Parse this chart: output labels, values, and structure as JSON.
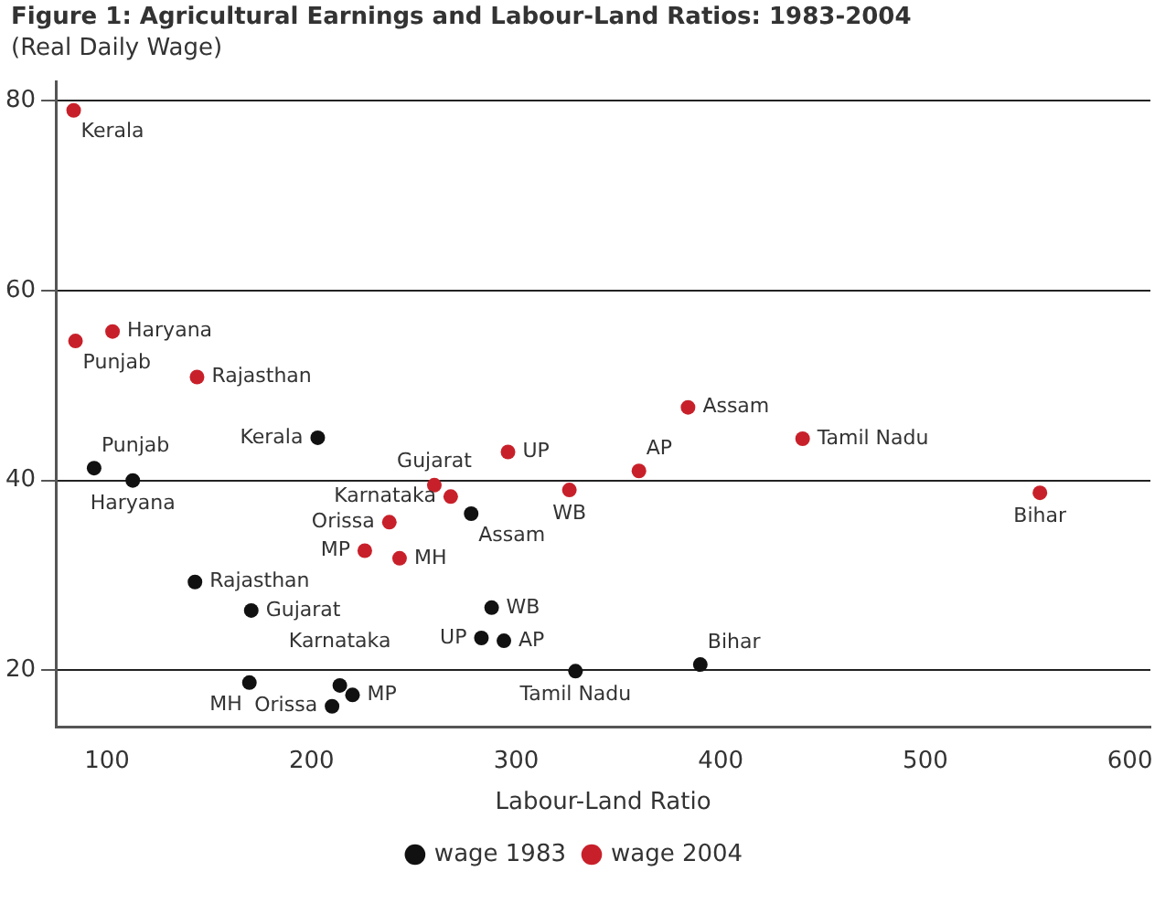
{
  "chart_data": {
    "type": "scatter",
    "title": "Figure 1: Agricultural Earnings and Labour-Land Ratios: 1983-2004",
    "ylabel": "(Real Daily Wage)",
    "xlabel": "Labour-Land Ratio",
    "xlim": [
      75,
      610
    ],
    "xticks": [
      100,
      200,
      300,
      400,
      500,
      600
    ],
    "ylim": [
      14,
      82
    ],
    "yticks": [
      20,
      40,
      60,
      80
    ],
    "grid": "y",
    "legend": "bottom",
    "marker": "circle",
    "series": [
      {
        "name": "wage 1983",
        "color": "#111111",
        "x": [
          203,
          93.7,
          112.6,
          143,
          170.5,
          213.8,
          220,
          210,
          169.6,
          278,
          288,
          283,
          294,
          329,
          390
        ],
        "values": [
          44.5,
          41.3,
          40.0,
          29.3,
          26.3,
          18.4,
          17.4,
          16.2,
          18.7,
          36.5,
          26.6,
          23.4,
          23.1,
          19.9,
          20.6
        ]
      },
      {
        "name": "wage 2004",
        "color": "#c8202a",
        "x": [
          83.7,
          84.6,
          102.7,
          144,
          260,
          268,
          238,
          226,
          243,
          296,
          360,
          326,
          384,
          440,
          556
        ],
        "values": [
          79.0,
          54.7,
          55.7,
          50.9,
          39.5,
          38.3,
          35.6,
          32.6,
          31.8,
          43.0,
          41.0,
          39.0,
          47.7,
          44.4,
          38.7
        ]
      }
    ],
    "annotations": [
      {
        "text": "Kerala",
        "x": 83.7,
        "y": 79.0
      },
      {
        "text": "Punjab",
        "x": 84.6,
        "y": 54.7
      },
      {
        "text": "Haryana",
        "x": 102.7,
        "y": 55.7
      },
      {
        "text": "Rajasthan",
        "x": 144,
        "y": 50.9
      },
      {
        "text": "Gujarat",
        "x": 260,
        "y": 39.5
      },
      {
        "text": "Karnataka",
        "x": 268,
        "y": 38.3
      },
      {
        "text": "Orissa",
        "x": 238,
        "y": 35.6
      },
      {
        "text": "MP",
        "x": 226,
        "y": 32.6
      },
      {
        "text": "MH",
        "x": 243,
        "y": 31.8
      },
      {
        "text": "UP",
        "x": 296,
        "y": 43.0
      },
      {
        "text": "AP",
        "x": 360,
        "y": 41.0
      },
      {
        "text": "WB",
        "x": 326,
        "y": 39.0
      },
      {
        "text": "Assam",
        "x": 384,
        "y": 47.7
      },
      {
        "text": "Tamil Nadu",
        "x": 440,
        "y": 44.4
      },
      {
        "text": "Bihar",
        "x": 556,
        "y": 38.7
      },
      {
        "text": "Kerala",
        "x": 203,
        "y": 44.5
      },
      {
        "text": "Punjab",
        "x": 93.7,
        "y": 41.3
      },
      {
        "text": "Haryana",
        "x": 112.6,
        "y": 40.0
      },
      {
        "text": "Rajasthan",
        "x": 143,
        "y": 29.3
      },
      {
        "text": "Gujarat",
        "x": 170.5,
        "y": 26.3
      },
      {
        "text": "Karnataka",
        "x": 213.8,
        "y": 18.4
      },
      {
        "text": "MP",
        "x": 220,
        "y": 17.4
      },
      {
        "text": "Orissa",
        "x": 210,
        "y": 16.2
      },
      {
        "text": "MH",
        "x": 169.6,
        "y": 18.7
      },
      {
        "text": "Assam",
        "x": 278,
        "y": 36.5
      },
      {
        "text": "WB",
        "x": 288,
        "y": 26.6
      },
      {
        "text": "UP",
        "x": 283,
        "y": 23.4
      },
      {
        "text": "AP",
        "x": 294,
        "y": 23.1
      },
      {
        "text": "Tamil Nadu",
        "x": 329,
        "y": 19.9
      },
      {
        "text": "Bihar",
        "x": 390,
        "y": 20.6
      }
    ]
  }
}
